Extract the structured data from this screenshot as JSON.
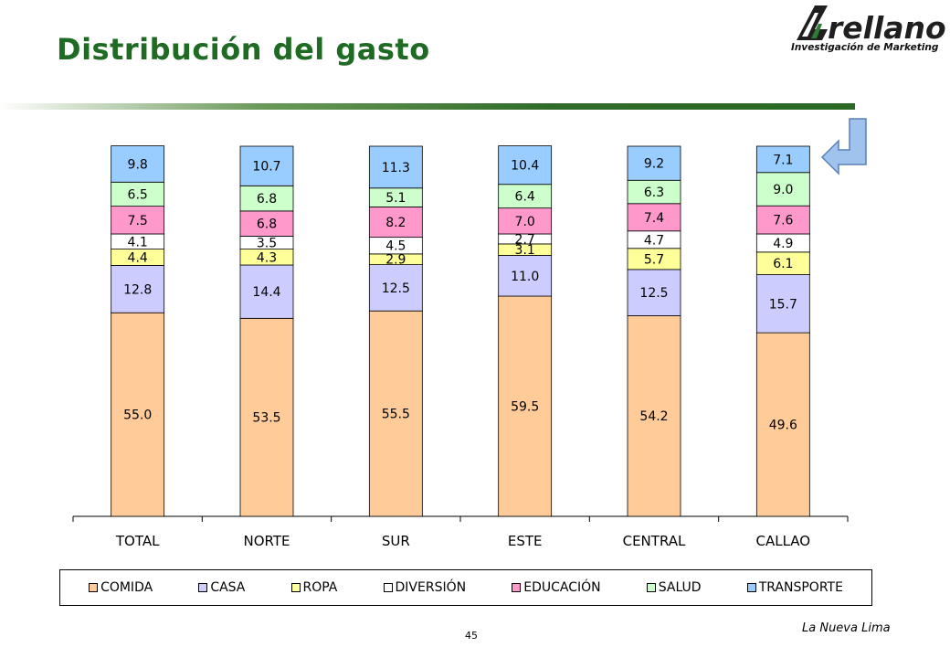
{
  "title": "Distribución del gasto",
  "logo": {
    "name": "Arellano",
    "tagline": "Investigación de Marketing"
  },
  "page_number": "45",
  "footer_note": "La Nueva Lima",
  "chart_data": {
    "type": "bar",
    "stacked": true,
    "categories": [
      "TOTAL",
      "NORTE",
      "SUR",
      "ESTE",
      "CENTRAL",
      "CALLAO"
    ],
    "series": [
      {
        "name": "COMIDA",
        "color": "#ffcc99",
        "values": [
          55.0,
          53.5,
          55.5,
          59.5,
          54.2,
          49.6
        ],
        "labels": [
          "55.0",
          "53.5",
          "55.5",
          "59.5",
          "54.2",
          "49.6"
        ]
      },
      {
        "name": "CASA",
        "color": "#ccccff",
        "values": [
          12.8,
          14.4,
          12.5,
          11.0,
          12.5,
          15.7
        ],
        "labels": [
          "12.8",
          "14.4",
          "12.5",
          "11.0",
          "12.5",
          "15.7"
        ]
      },
      {
        "name": "ROPA",
        "color": "#ffff99",
        "values": [
          4.4,
          4.3,
          2.9,
          3.1,
          5.7,
          6.1
        ],
        "labels": [
          "4.4",
          "4.3",
          "2.9",
          "3.1",
          "5.7",
          "6.1"
        ]
      },
      {
        "name": "DIVERSIÓN",
        "color": "#ffffff",
        "values": [
          4.1,
          3.5,
          4.5,
          2.7,
          4.7,
          4.9
        ],
        "labels": [
          "4.1",
          "3.5",
          "4.5",
          "2.7",
          "4.7",
          "4.9"
        ]
      },
      {
        "name": "EDUCACIÓN",
        "color": "#ff99cc",
        "values": [
          7.5,
          6.8,
          8.2,
          7.0,
          7.4,
          7.6
        ],
        "labels": [
          "7.5",
          "6.8",
          "8.2",
          "7.0",
          "7.4",
          "7.6"
        ]
      },
      {
        "name": "SALUD",
        "color": "#ccffcc",
        "values": [
          6.5,
          6.8,
          5.1,
          6.4,
          6.3,
          9.0
        ],
        "labels": [
          "6.5",
          "6.8",
          "5.1",
          "6.4",
          "6.3",
          "9.0"
        ]
      },
      {
        "name": "TRANSPORTE",
        "color": "#99ccff",
        "values": [
          9.8,
          10.7,
          11.3,
          10.4,
          9.2,
          7.1
        ],
        "labels": [
          "9.8",
          "10.7",
          "11.3",
          "10.4",
          "9.2",
          "7.1"
        ]
      }
    ],
    "ylim": [
      0,
      100
    ],
    "grid": false,
    "legend_position": "bottom",
    "xlabel": "",
    "ylabel": ""
  }
}
